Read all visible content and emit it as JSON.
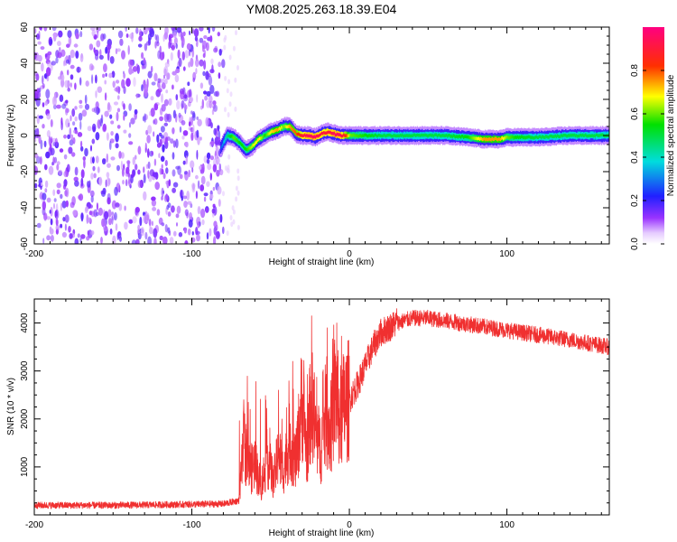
{
  "title": "YM08.2025.263.18.39.E04",
  "colors": {
    "snr_line": "#f03030",
    "frame": "#000000",
    "scatter": "#8a3cf0"
  },
  "chart_data": [
    {
      "type": "heatmap",
      "title": "YM08.2025.263.18.39.E04",
      "xlabel": "Height of straight line (km)",
      "ylabel": "Frequency (Hz)",
      "xlim": [
        -200,
        165
      ],
      "ylim": [
        -60,
        60
      ],
      "xticks": [
        -200,
        -100,
        0,
        100
      ],
      "yticks": [
        -60,
        -40,
        -20,
        0,
        20,
        40,
        60
      ],
      "x_tick_labels": [
        "-200",
        "-100",
        "0",
        "100"
      ],
      "y_tick_labels": [
        "-60",
        "-40",
        "-20",
        "0",
        "20",
        "40",
        "60"
      ],
      "noise_region_x": [
        -200,
        -80
      ],
      "ridge": {
        "x": [
          -82,
          -78,
          -74,
          -70,
          -66,
          -62,
          -58,
          -54,
          -50,
          -46,
          -42,
          -38,
          -34,
          -30,
          -26,
          -22,
          -18,
          -14,
          -10,
          -6,
          -2,
          0,
          20,
          40,
          60,
          75,
          85,
          95,
          100,
          105,
          120,
          140,
          165
        ],
        "freq": [
          -7,
          0,
          -1,
          -4,
          -8,
          -6,
          -2,
          0,
          2,
          3,
          5,
          5,
          1,
          0,
          0,
          -1,
          1,
          2,
          1,
          0,
          0,
          0,
          0,
          0,
          0,
          -1,
          -2,
          -2,
          -1,
          -1,
          -1,
          0,
          0
        ],
        "amplitude": [
          0.25,
          0.45,
          0.6,
          0.55,
          0.55,
          0.65,
          0.7,
          0.55,
          0.7,
          0.75,
          0.6,
          0.75,
          0.8,
          0.9,
          0.95,
          0.95,
          0.9,
          0.9,
          0.95,
          0.95,
          0.8,
          0.6,
          0.5,
          0.5,
          0.5,
          0.55,
          0.75,
          0.75,
          0.6,
          0.55,
          0.5,
          0.5,
          0.5
        ]
      },
      "colorbar": {
        "label": "Normalized spectral amplitude",
        "range": [
          0.0,
          1.0
        ],
        "ticks": [
          0.0,
          0.2,
          0.4,
          0.6,
          0.8
        ],
        "tick_labels": [
          "0.0",
          "0.2",
          "0.4",
          "0.6",
          "0.8"
        ],
        "colormap": "rainbow (white-violet-blue-cyan-green-yellow-red-magenta)"
      }
    },
    {
      "type": "line",
      "xlabel": "Height of straight line (km)",
      "ylabel": "SNR (10 * v/v)",
      "xlim": [
        -200,
        165
      ],
      "ylim": [
        0,
        4500
      ],
      "xticks": [
        -200,
        -100,
        0,
        100
      ],
      "yticks": [
        1000,
        2000,
        3000,
        4000
      ],
      "x_tick_labels": [
        "-200",
        "-100",
        "0",
        "100"
      ],
      "y_tick_labels": [
        "1000",
        "2000",
        "3000",
        "4000"
      ],
      "series": [
        {
          "name": "SNR",
          "x": [
            -200,
            -150,
            -100,
            -80,
            -70,
            -67,
            -63,
            -60,
            -56,
            -52,
            -48,
            -45,
            -42,
            -38,
            -34,
            -30,
            -27,
            -24,
            -21,
            -18,
            -15,
            -12,
            -9,
            -6,
            -3,
            0,
            5,
            10,
            15,
            20,
            25,
            30,
            35,
            40,
            50,
            60,
            80,
            100,
            120,
            140,
            165
          ],
          "values": [
            200,
            200,
            220,
            230,
            300,
            1500,
            900,
            1100,
            600,
            1200,
            700,
            1300,
            900,
            1500,
            1100,
            2400,
            1300,
            2500,
            1600,
            1400,
            2100,
            1700,
            2600,
            2000,
            2300,
            2400,
            2700,
            3100,
            3500,
            3800,
            3900,
            4000,
            4050,
            4100,
            4100,
            4050,
            3950,
            3850,
            3750,
            3650,
            3500
          ],
          "spikes": [
            [
              -67,
              2400
            ],
            [
              -63,
              2200
            ],
            [
              -45,
              2600
            ],
            [
              -36,
              3200
            ],
            [
              -24,
              4150
            ],
            [
              -14,
              3900
            ],
            [
              -8,
              4000
            ],
            [
              30,
              4300
            ]
          ]
        }
      ]
    }
  ]
}
